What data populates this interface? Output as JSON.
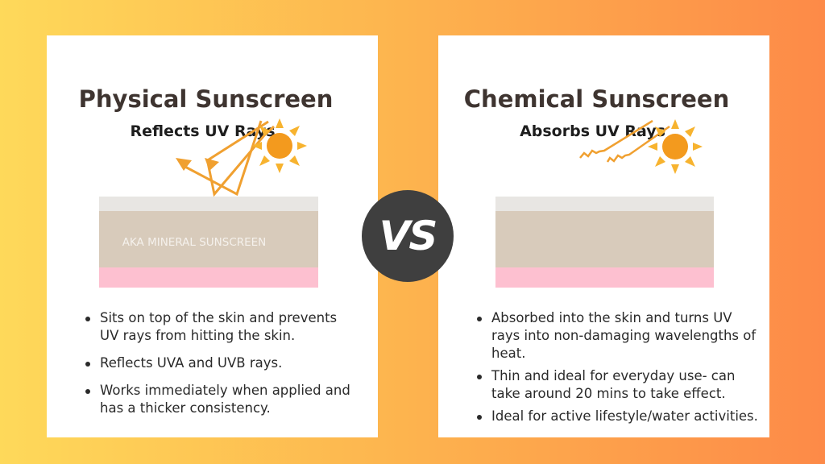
{
  "left": {
    "title": "Physical Sunscreen",
    "subtitle": "Reflects UV Rays",
    "layer_label": "AKA MINERAL SUNSCREEN",
    "bullets": [
      "Sits on top of the skin and prevents UV rays from hitting the skin.",
      "Reflects UVA and UVB rays.",
      "Works immediately when applied and has a thicker consistency."
    ]
  },
  "right": {
    "title": "Chemical Sunscreen",
    "subtitle": "Absorbs UV Rays",
    "bullets": [
      "Absorbed into the skin and turns UV rays into non-damaging wavelengths of heat.",
      "Thin and ideal for everyday use- can take around 20 mins to take effect.",
      "Ideal for active lifestyle/water activities."
    ]
  },
  "vs_label": "VS",
  "colors": {
    "sun": "#f39a1e",
    "ray": "#f0a030",
    "skin_top": "#e8e6e3",
    "skin_mid": "#d8cbbb",
    "skin_bottom": "#fdc0d0",
    "title": "#3e3430"
  }
}
